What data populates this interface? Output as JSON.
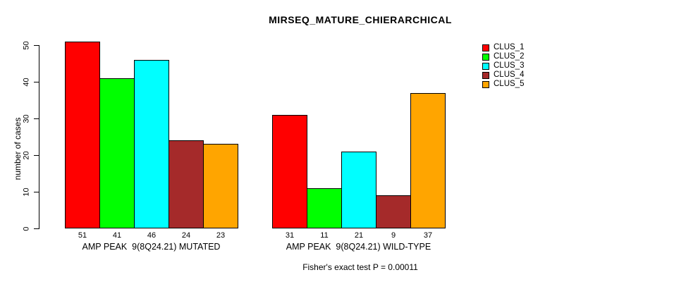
{
  "chart_data": {
    "type": "bar",
    "title": "MIRSEQ_MATURE_CHIERARCHICAL",
    "ylabel": "number of cases",
    "xlabel": "",
    "ylim": [
      0,
      50
    ],
    "yticks": [
      0,
      10,
      20,
      30,
      40,
      50
    ],
    "grid": false,
    "legend_position": "top-right",
    "bar_border_color": "#000000",
    "categories": [
      "AMP PEAK  9(8Q24.21) MUTATED",
      "AMP PEAK  9(8Q24.21) WILD-TYPE"
    ],
    "series": [
      {
        "name": "CLUS_1",
        "color": "#FF0000",
        "values": [
          51,
          31
        ]
      },
      {
        "name": "CLUS_2",
        "color": "#00FF00",
        "values": [
          41,
          11
        ]
      },
      {
        "name": "CLUS_3",
        "color": "#00FFFF",
        "values": [
          46,
          21
        ]
      },
      {
        "name": "CLUS_4",
        "color": "#A52A2A",
        "values": [
          24,
          9
        ]
      },
      {
        "name": "CLUS_5",
        "color": "#FFA500",
        "values": [
          23,
          37
        ]
      }
    ],
    "bar_value_labels": [
      [
        51,
        41,
        46,
        24,
        23
      ],
      [
        31,
        11,
        21,
        9,
        37
      ]
    ],
    "annotation": "Fisher's exact test P = 0.00011"
  }
}
